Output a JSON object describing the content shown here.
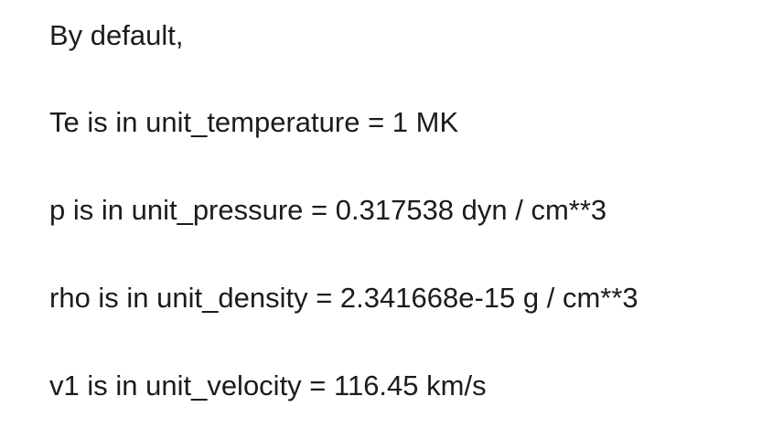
{
  "document": {
    "lines": [
      "By default,",
      "Te is in unit_temperature = 1 MK",
      "p is in unit_pressure = 0.317538 dyn / cm**3",
      "rho is in unit_density = 2.341668e-15 g / cm**3",
      "v1 is in unit_velocity = 116.45 km/s"
    ]
  }
}
